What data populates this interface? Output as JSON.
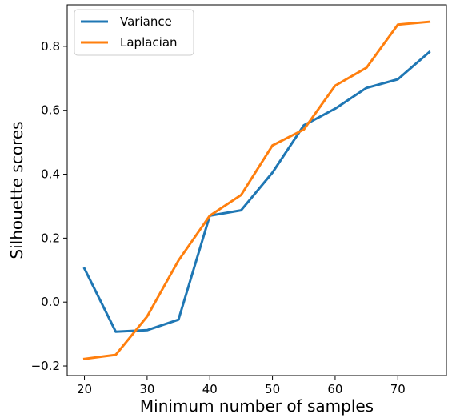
{
  "chart_data": {
    "type": "line",
    "title": "",
    "xlabel": "Minimum number of samples",
    "ylabel": "Silhouette scores",
    "x": [
      20,
      25,
      30,
      35,
      40,
      45,
      50,
      55,
      60,
      65,
      70,
      75
    ],
    "xlim": [
      17.25,
      77.75
    ],
    "ylim": [
      -0.23,
      0.93
    ],
    "xticks": [
      20,
      30,
      40,
      50,
      60,
      70
    ],
    "yticks": [
      -0.2,
      0.0,
      0.2,
      0.4,
      0.6,
      0.8
    ],
    "ytick_labels": [
      "−0.2",
      "0.0",
      "0.2",
      "0.4",
      "0.6",
      "0.8"
    ],
    "grid": false,
    "legend_position": "top-left",
    "series": [
      {
        "name": "Variance",
        "color": "#1f77b4",
        "values": [
          0.105,
          -0.093,
          -0.088,
          -0.055,
          0.27,
          0.287,
          0.405,
          0.553,
          0.605,
          0.67,
          0.697,
          0.782
        ]
      },
      {
        "name": "Laplacian",
        "color": "#ff7f0e",
        "values": [
          -0.178,
          -0.165,
          -0.045,
          0.13,
          0.27,
          0.335,
          0.49,
          0.54,
          0.677,
          0.733,
          0.868,
          0.877
        ]
      }
    ]
  }
}
